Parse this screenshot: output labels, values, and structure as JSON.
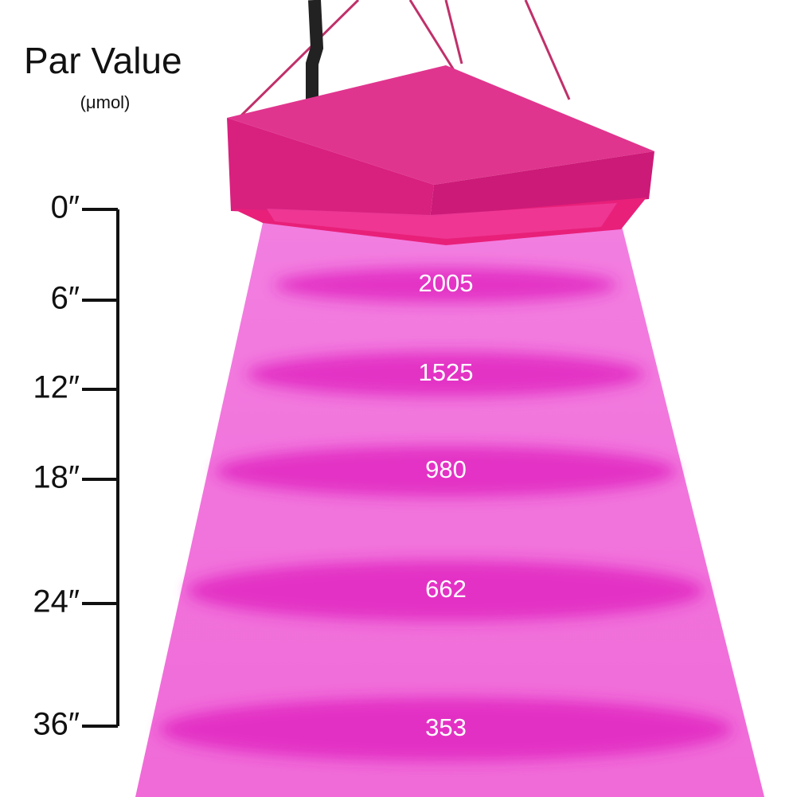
{
  "header": {
    "title": "Par Value",
    "unit": "(μmol)"
  },
  "scale": {
    "labels": [
      "0″",
      "6″",
      "12″",
      "18″",
      "24″",
      "36″"
    ]
  },
  "readings": [
    "2005",
    "1525",
    "980",
    "662",
    "353"
  ]
}
